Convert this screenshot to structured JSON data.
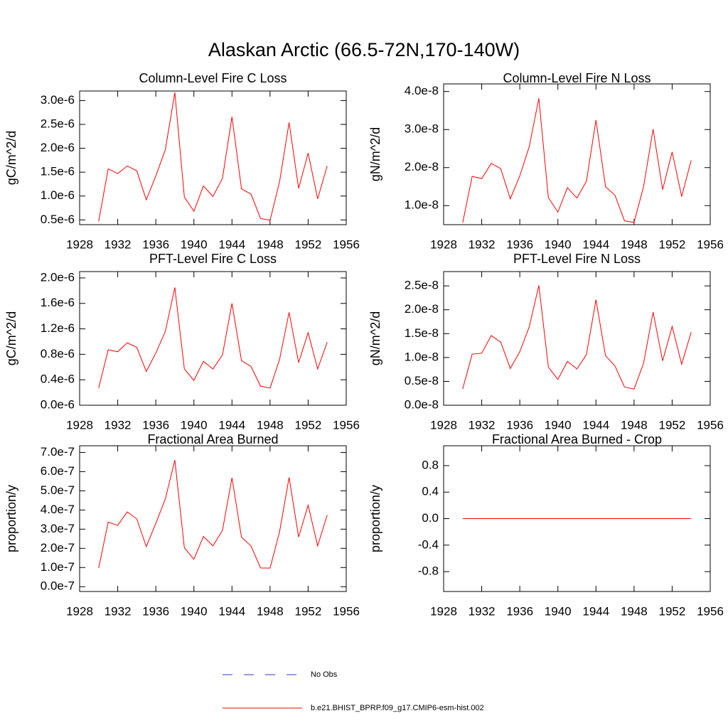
{
  "title": "Alaskan Arctic (66.5-72N,170-140W)",
  "legend": [
    {
      "name": "No Obs",
      "color": "#3333cc",
      "dashed": true
    },
    {
      "name": "b.e21.BHIST_BPRP.f09_g17.CMIP6-esm-hist.002",
      "color": "#ff0000",
      "dashed": false
    }
  ],
  "chart_data": [
    {
      "type": "line",
      "title": "Column-Level Fire C Loss",
      "y_label": "gC/m^2/d",
      "x": [
        1930,
        1931,
        1932,
        1933,
        1934,
        1935,
        1936,
        1937,
        1938,
        1939,
        1940,
        1941,
        1942,
        1943,
        1944,
        1945,
        1946,
        1947,
        1948,
        1949,
        1950,
        1951,
        1952,
        1953,
        1954
      ],
      "series": [
        {
          "color": "#ff0000",
          "values": [
            4.7e-07,
            1.57e-06,
            1.47e-06,
            1.63e-06,
            1.53e-06,
            9.2e-07,
            1.42e-06,
            1.97e-06,
            3.17e-06,
            9.8e-07,
            6.8e-07,
            1.21e-06,
            9.9e-07,
            1.37e-06,
            2.66e-06,
            1.15e-06,
            1.04e-06,
            5.3e-07,
            4.9e-07,
            1.3e-06,
            2.54e-06,
            1.16e-06,
            1.9e-06,
            9.4e-07,
            1.63e-06
          ]
        }
      ],
      "xlim": [
        1928,
        1956
      ],
      "xticks": [
        1928,
        1932,
        1936,
        1940,
        1944,
        1948,
        1952,
        1956
      ],
      "ylim": [
        4e-07,
        3.2e-06
      ],
      "yticks": [
        {
          "value": 5e-07,
          "label": "0.5e-6"
        },
        {
          "value": 1e-06,
          "label": "1.0e-6"
        },
        {
          "value": 1.5e-06,
          "label": "1.5e-6"
        },
        {
          "value": 2e-06,
          "label": "2.0e-6"
        },
        {
          "value": 2.5e-06,
          "label": "2.5e-6"
        },
        {
          "value": 3e-06,
          "label": "3.0e-6"
        }
      ]
    },
    {
      "type": "line",
      "title": "Column-Level Fire N Loss",
      "y_label": "gN/m^2/d",
      "x": [
        1930,
        1931,
        1932,
        1933,
        1934,
        1935,
        1936,
        1937,
        1938,
        1939,
        1940,
        1941,
        1942,
        1943,
        1944,
        1945,
        1946,
        1947,
        1948,
        1949,
        1950,
        1951,
        1952,
        1953,
        1954
      ],
      "series": [
        {
          "color": "#ff0000",
          "values": [
            5.5e-09,
            1.77e-08,
            1.71e-08,
            2.11e-08,
            1.97e-08,
            1.18e-08,
            1.78e-08,
            2.56e-08,
            3.82e-08,
            1.21e-08,
            8.3e-09,
            1.47e-08,
            1.2e-08,
            1.64e-08,
            3.25e-08,
            1.5e-08,
            1.27e-08,
            6e-09,
            5.6e-09,
            1.5e-08,
            3.01e-08,
            1.42e-08,
            2.41e-08,
            1.24e-08,
            2.19e-08
          ]
        }
      ],
      "xlim": [
        1928,
        1956
      ],
      "xticks": [
        1928,
        1932,
        1936,
        1940,
        1944,
        1948,
        1952,
        1956
      ],
      "ylim": [
        5e-09,
        4.2e-08
      ],
      "yticks": [
        {
          "value": 1e-08,
          "label": "1.0e-8"
        },
        {
          "value": 2e-08,
          "label": "2.0e-8"
        },
        {
          "value": 3e-08,
          "label": "3.0e-8"
        },
        {
          "value": 4e-08,
          "label": "4.0e-8"
        }
      ]
    },
    {
      "type": "line",
      "title": "PFT-Level Fire C Loss",
      "y_label": "gC/m^2/d",
      "x": [
        1930,
        1931,
        1932,
        1933,
        1934,
        1935,
        1936,
        1937,
        1938,
        1939,
        1940,
        1941,
        1942,
        1943,
        1944,
        1945,
        1946,
        1947,
        1948,
        1949,
        1950,
        1951,
        1952,
        1953,
        1954
      ],
      "series": [
        {
          "color": "#ff0000",
          "values": [
            2.7e-07,
            8.7e-07,
            8.4e-07,
            9.8e-07,
            9.1e-07,
            5.3e-07,
            8.2e-07,
            1.16e-06,
            1.85e-06,
            5.7e-07,
            3.9e-07,
            6.9e-07,
            5.7e-07,
            7.9e-07,
            1.6e-06,
            7e-07,
            6.1e-07,
            3e-07,
            2.7e-07,
            7.2e-07,
            1.46e-06,
            6.7e-07,
            1.14e-06,
            5.7e-07,
            9.9e-07
          ]
        }
      ],
      "xlim": [
        1928,
        1956
      ],
      "xticks": [
        1928,
        1932,
        1936,
        1940,
        1944,
        1948,
        1952,
        1956
      ],
      "ylim": [
        0,
        2.1e-06
      ],
      "yticks": [
        {
          "value": 0,
          "label": "0.0e-6"
        },
        {
          "value": 4e-07,
          "label": "0.4e-6"
        },
        {
          "value": 8e-07,
          "label": "0.8e-6"
        },
        {
          "value": 1.2e-06,
          "label": "1.2e-6"
        },
        {
          "value": 1.6e-06,
          "label": "1.6e-6"
        },
        {
          "value": 2e-06,
          "label": "2.0e-6"
        }
      ]
    },
    {
      "type": "line",
      "title": "PFT-Level Fire N Loss",
      "y_label": "gN/m^2/d",
      "x": [
        1930,
        1931,
        1932,
        1933,
        1934,
        1935,
        1936,
        1937,
        1938,
        1939,
        1940,
        1941,
        1942,
        1943,
        1944,
        1945,
        1946,
        1947,
        1948,
        1949,
        1950,
        1951,
        1952,
        1953,
        1954
      ],
      "series": [
        {
          "color": "#ff0000",
          "values": [
            3.4e-09,
            1.07e-08,
            1.09e-08,
            1.46e-08,
            1.32e-08,
            7.7e-09,
            1.12e-08,
            1.65e-08,
            2.51e-08,
            8e-09,
            5.4e-09,
            9.2e-09,
            7.6e-09,
            1.06e-08,
            2.21e-08,
            1.04e-08,
            8.2e-09,
            3.8e-09,
            3.4e-09,
            8.8e-09,
            1.95e-08,
            9.3e-09,
            1.65e-08,
            8.6e-09,
            1.53e-08
          ]
        }
      ],
      "xlim": [
        1928,
        1956
      ],
      "xticks": [
        1928,
        1932,
        1936,
        1940,
        1944,
        1948,
        1952,
        1956
      ],
      "ylim": [
        0,
        2.8e-08
      ],
      "yticks": [
        {
          "value": 0,
          "label": "0.0e-8"
        },
        {
          "value": 5e-09,
          "label": "0.5e-8"
        },
        {
          "value": 1e-08,
          "label": "1.0e-8"
        },
        {
          "value": 1.5e-08,
          "label": "1.5e-8"
        },
        {
          "value": 2e-08,
          "label": "2.0e-8"
        },
        {
          "value": 2.5e-08,
          "label": "2.5e-8"
        }
      ]
    },
    {
      "type": "line",
      "title": "Fractional Area Burned",
      "y_label": "proportion/y",
      "x": [
        1930,
        1931,
        1932,
        1933,
        1934,
        1935,
        1936,
        1937,
        1938,
        1939,
        1940,
        1941,
        1942,
        1943,
        1944,
        1945,
        1946,
        1947,
        1948,
        1949,
        1950,
        1951,
        1952,
        1953,
        1954
      ],
      "series": [
        {
          "color": "#ff0000",
          "values": [
            9.7e-08,
            3.37e-07,
            3.2e-07,
            3.9e-07,
            3.54e-07,
            2.09e-07,
            3.3e-07,
            4.58e-07,
            6.6e-07,
            2.03e-07,
            1.43e-07,
            2.62e-07,
            2.13e-07,
            2.93e-07,
            5.68e-07,
            2.58e-07,
            2.12e-07,
            9.8e-08,
            9.7e-08,
            2.87e-07,
            5.7e-07,
            2.59e-07,
            4.25e-07,
            2.13e-07,
            3.74e-07
          ]
        }
      ],
      "xlim": [
        1928,
        1956
      ],
      "xticks": [
        1928,
        1932,
        1936,
        1940,
        1944,
        1948,
        1952,
        1956
      ],
      "ylim": [
        -2.5e-08,
        7.35e-07
      ],
      "yticks": [
        {
          "value": 0,
          "label": "0.0e-7"
        },
        {
          "value": 1e-07,
          "label": "1.0e-7"
        },
        {
          "value": 2e-07,
          "label": "2.0e-7"
        },
        {
          "value": 3e-07,
          "label": "3.0e-7"
        },
        {
          "value": 4e-07,
          "label": "4.0e-7"
        },
        {
          "value": 5e-07,
          "label": "5.0e-7"
        },
        {
          "value": 6e-07,
          "label": "6.0e-7"
        },
        {
          "value": 7e-07,
          "label": "7.0e-7"
        }
      ]
    },
    {
      "type": "line",
      "title": "Fractional Area Burned - Crop",
      "y_label": "proportion/y",
      "x": [
        1930,
        1931,
        1932,
        1933,
        1934,
        1935,
        1936,
        1937,
        1938,
        1939,
        1940,
        1941,
        1942,
        1943,
        1944,
        1945,
        1946,
        1947,
        1948,
        1949,
        1950,
        1951,
        1952,
        1953,
        1954
      ],
      "series": [
        {
          "color": "#ff0000",
          "values": [
            0,
            0,
            0,
            0,
            0,
            0,
            0,
            0,
            0,
            0,
            0,
            0,
            0,
            0,
            0,
            0,
            0,
            0,
            0,
            0,
            0,
            0,
            0,
            0,
            0
          ]
        }
      ],
      "xlim": [
        1928,
        1956
      ],
      "xticks": [
        1928,
        1932,
        1936,
        1940,
        1944,
        1948,
        1952,
        1956
      ],
      "ylim": [
        -1.1,
        1.1
      ],
      "yticks": [
        -0.8,
        -0.4,
        {
          "value": 0,
          "label": "0.0"
        },
        0.4,
        0.8
      ]
    }
  ]
}
